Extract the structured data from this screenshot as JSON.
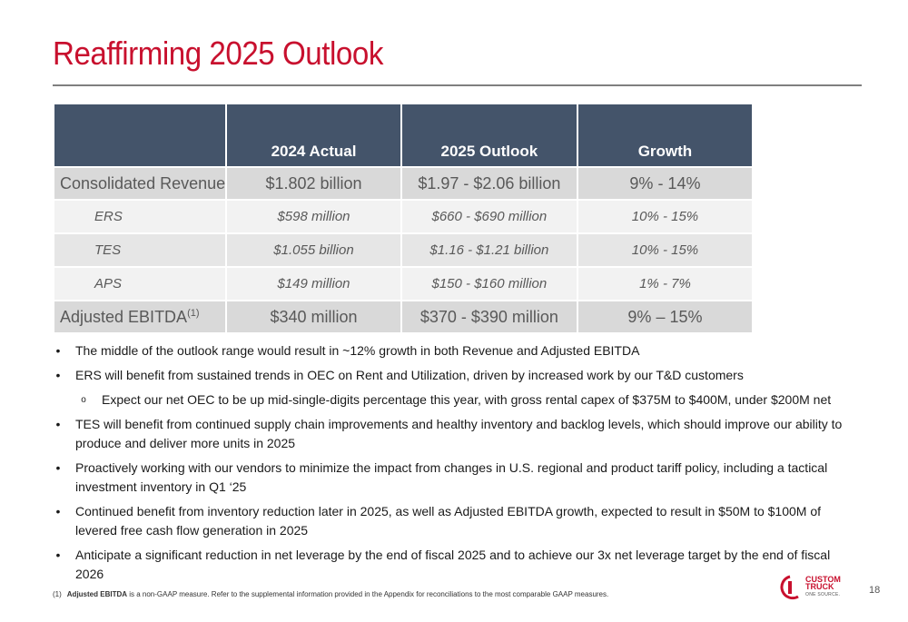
{
  "slide": {
    "title": "Reaffirming 2025 Outlook",
    "page_number": "18"
  },
  "table": {
    "headers": [
      "",
      "2024 Actual",
      "2025 Outlook",
      "Growth"
    ],
    "rows": [
      {
        "label": "Consolidated Revenue",
        "actual": "$1.802 billion",
        "outlook": "$1.97 - $2.06 billion",
        "growth": "9% - 14%"
      },
      {
        "label": "ERS",
        "actual": "$598 million",
        "outlook": "$660 - $690 million",
        "growth": "10% - 15%"
      },
      {
        "label": "TES",
        "actual": "$1.055 billion",
        "outlook": "$1.16 - $1.21 billion",
        "growth": "10% - 15%"
      },
      {
        "label": "APS",
        "actual": "$149 million",
        "outlook": "$150 - $160 million",
        "growth": "1% - 7%"
      },
      {
        "label": "Adjusted EBITDA",
        "label_sup": "(1)",
        "actual": "$340 million",
        "outlook": "$370 - $390 million",
        "growth": "9% – 15%"
      }
    ]
  },
  "bullets": [
    {
      "marker": "•",
      "text": "The middle of the outlook range would result in ~12% growth in both Revenue and Adjusted EBITDA"
    },
    {
      "marker": "•",
      "text": "ERS will benefit from sustained trends in OEC on Rent and Utilization, driven by increased work by our T&D customers"
    },
    {
      "marker": "o",
      "text": "Expect our net OEC to be up mid-single-digits percentage this year, with gross rental capex of $375M to $400M, under $200M net"
    },
    {
      "marker": "•",
      "text": "TES will benefit from continued supply chain improvements and healthy inventory and backlog levels, which should improve our ability to produce and deliver more units in 2025"
    },
    {
      "marker": "•",
      "text": "Proactively working with our vendors to minimize the impact from changes in U.S. regional and product tariff policy, including a tactical investment inventory in Q1 ‘25"
    },
    {
      "marker": "•",
      "text": "Continued benefit from inventory reduction later in 2025, as well as Adjusted EBITDA growth, expected to result in $50M to $100M of levered free cash flow generation in 2025"
    },
    {
      "marker": "•",
      "text": "Anticipate a significant reduction in net leverage by the end of fiscal 2025 and to achieve our 3x net leverage target by the end of fiscal 2026"
    }
  ],
  "footnote": {
    "number": "(1)",
    "bold": "Adjusted EBITDA",
    "text": " is a non-GAAP measure. Refer to the supplemental information provided in the Appendix for reconciliations to the most comparable GAAP measures."
  },
  "logo": {
    "line1": "CUSTOM",
    "line2": "TRUCK",
    "tagline": "ONE SOURCE.",
    "color": "#c8102e"
  },
  "colors": {
    "title": "#c8102e",
    "table_header": "#44546a"
  }
}
